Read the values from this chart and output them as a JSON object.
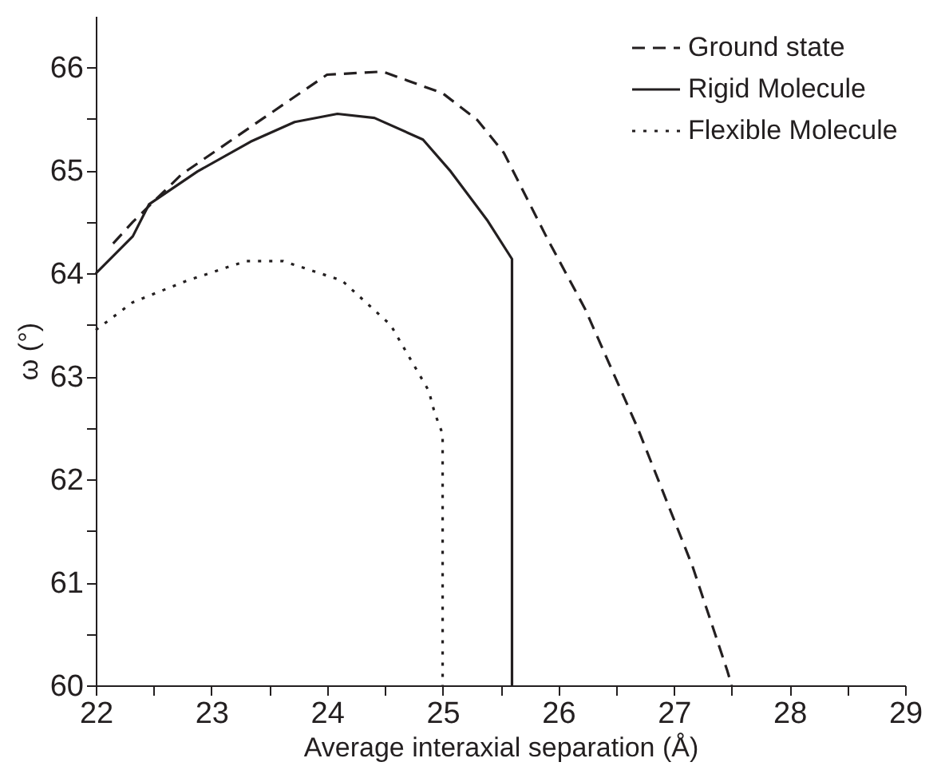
{
  "chart_data": {
    "type": "line",
    "xlabel": "Average interaxial separation (Å)",
    "ylabel": "ω (°)",
    "xlim": [
      22,
      29
    ],
    "ylim": [
      60,
      66.5
    ],
    "xticks": [
      22,
      {
        "value": 22.5,
        "label": null
      },
      23,
      {
        "value": 23.5,
        "label": null
      },
      24,
      {
        "value": 24.5,
        "label": null
      },
      25,
      {
        "value": 25.5,
        "label": null
      },
      26,
      {
        "value": 26.5,
        "label": null
      },
      27,
      {
        "value": 27.5,
        "label": null
      },
      28,
      {
        "value": 28.5,
        "label": null
      },
      29
    ],
    "yticks": [
      60,
      {
        "value": 60.5,
        "label": null
      },
      61,
      {
        "value": 61.5,
        "label": null
      },
      62,
      {
        "value": 62.5,
        "label": null
      },
      63,
      {
        "value": 63.5,
        "label": null
      },
      64,
      {
        "value": 64.5,
        "label": null
      },
      65,
      {
        "value": 65.5,
        "label": null
      },
      66
    ],
    "grid": false,
    "legend": "top right",
    "marker": "none",
    "series": [
      {
        "name": "Ground state",
        "color": "#231f20",
        "line_style": "dashed",
        "x": [
          22.15,
          22.32,
          22.74,
          23.44,
          24.0,
          24.48,
          25.0,
          25.3,
          25.53,
          25.9,
          26.23,
          26.69,
          27.16,
          27.46,
          27.5
        ],
        "values": [
          64.29,
          64.5,
          64.96,
          65.5,
          65.93,
          65.96,
          65.75,
          65.49,
          65.17,
          64.35,
          63.66,
          62.49,
          61.16,
          60.15,
          60.0
        ]
      },
      {
        "name": "Rigid Molecule",
        "color": "#231f20",
        "line_style": "solid",
        "x": [
          22.0,
          22.32,
          22.46,
          22.88,
          23.34,
          23.72,
          24.09,
          24.41,
          24.83,
          25.07,
          25.39,
          25.6,
          25.6
        ],
        "values": [
          64.0,
          64.36,
          64.67,
          64.99,
          65.28,
          65.47,
          65.55,
          65.51,
          65.3,
          64.99,
          64.51,
          64.14,
          60.0
        ]
      },
      {
        "name": "Flexible Molecule",
        "color": "#231f20",
        "line_style": "dotted",
        "x": [
          22.0,
          22.32,
          22.79,
          23.3,
          23.62,
          24.13,
          24.55,
          24.88,
          24.93,
          25.0,
          25.0
        ],
        "values": [
          63.45,
          63.72,
          63.93,
          64.12,
          64.12,
          63.93,
          63.5,
          62.86,
          62.65,
          62.44,
          60.0
        ]
      }
    ]
  }
}
